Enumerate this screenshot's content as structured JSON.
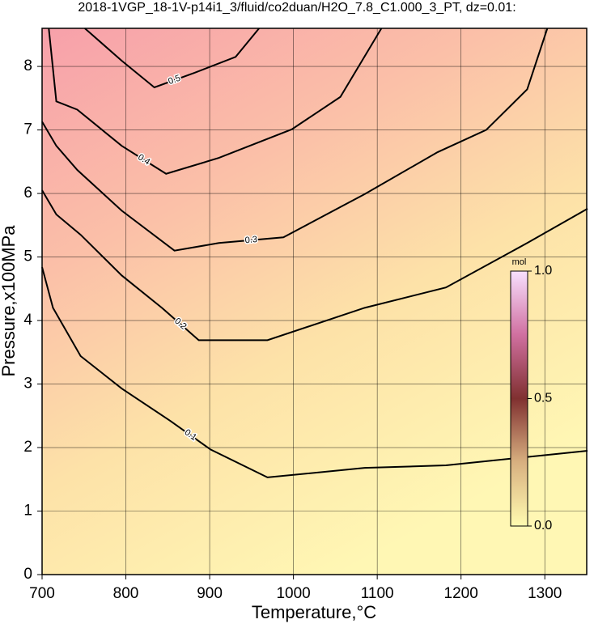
{
  "chart_data": {
    "type": "contour",
    "title": "2018-1VGP_18-1V-p14i1_3/fluid/co2duan/H2O_7.8_C1.000_3_PT, dz=0.01:",
    "x_label": "Temperature,°C",
    "y_label": "Pressure,x100MPa",
    "xlim": [
      700,
      1350
    ],
    "ylim": [
      0,
      8.6
    ],
    "xticks": [
      700,
      800,
      900,
      1000,
      1100,
      1200,
      1300
    ],
    "yticks": [
      0,
      1,
      2,
      3,
      4,
      5,
      6,
      7,
      8
    ],
    "grid": true,
    "contours": [
      {
        "level": 0.1,
        "x": [
          700,
          713,
          746,
          795,
          853,
          901,
          969,
          1085,
          1182,
          1351
        ],
        "y": [
          4.84,
          4.2,
          3.44,
          2.93,
          2.42,
          1.97,
          1.53,
          1.68,
          1.72,
          1.95
        ]
      },
      {
        "level": 0.2,
        "x": [
          700,
          717,
          746,
          795,
          843,
          887,
          969,
          1085,
          1182,
          1279,
          1351
        ],
        "y": [
          6.05,
          5.67,
          5.35,
          4.71,
          4.2,
          3.69,
          3.69,
          4.2,
          4.52,
          5.22,
          5.76
        ]
      },
      {
        "level": 0.3,
        "x": [
          700,
          717,
          742,
          795,
          858,
          911,
          988,
          1085,
          1172,
          1230,
          1279,
          1303
        ],
        "y": [
          7.13,
          6.75,
          6.37,
          5.73,
          5.1,
          5.22,
          5.31,
          5.99,
          6.65,
          7.0,
          7.64,
          8.6
        ]
      },
      {
        "level": 0.4,
        "x": [
          708,
          717,
          742,
          795,
          848,
          911,
          998,
          1056,
          1105
        ],
        "y": [
          8.6,
          7.45,
          7.32,
          6.75,
          6.31,
          6.56,
          7.01,
          7.52,
          8.6
        ]
      },
      {
        "level": 0.5,
        "x": [
          751,
          795,
          834,
          882,
          931,
          959
        ],
        "y": [
          8.6,
          8.09,
          7.67,
          7.9,
          8.15,
          8.6
        ]
      }
    ],
    "colorbar": {
      "label": "mol",
      "lim": [
        0,
        1
      ],
      "ticks": [
        {
          "value": 0,
          "label": "0.0"
        },
        {
          "value": 0.5,
          "label": "0.5"
        },
        {
          "value": 1,
          "label": "1.0"
        }
      ]
    }
  }
}
